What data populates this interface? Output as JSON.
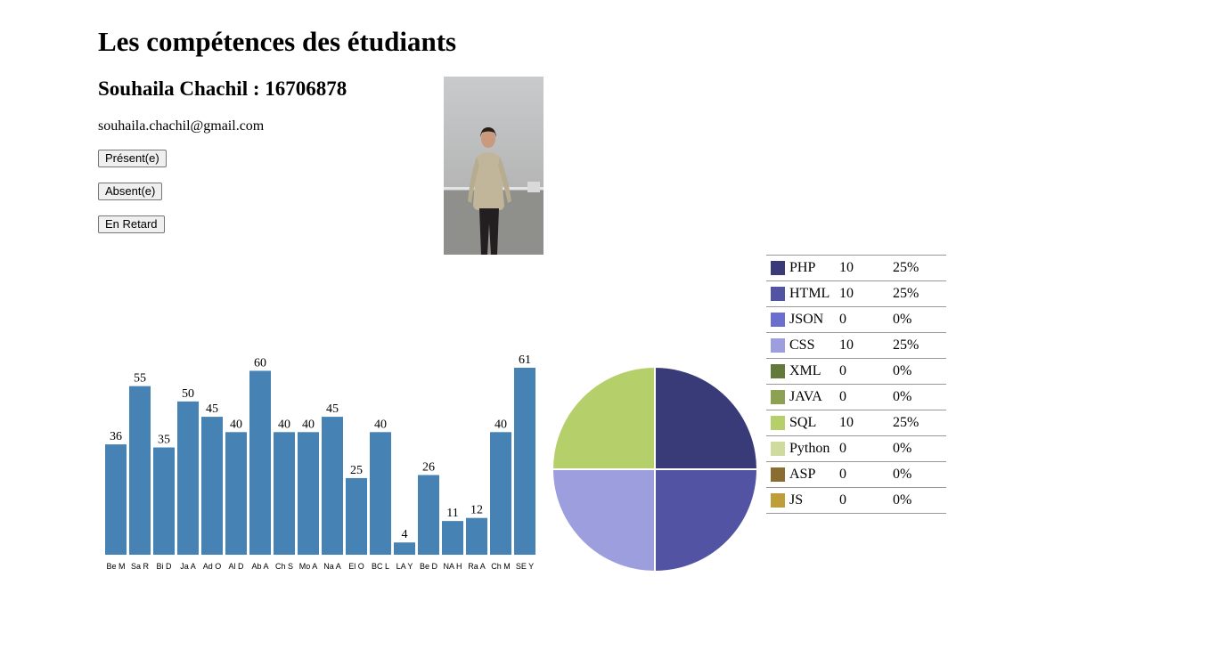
{
  "title": "Les compétences des étudiants",
  "student": {
    "name": "Souhaila Chachil : 16706878",
    "email": "souhaila.chachil@gmail.com"
  },
  "buttons": {
    "present": "Présent(e)",
    "absent": "Absent(e)",
    "late": "En Retard"
  },
  "colors": {
    "bar": "#4682b4"
  },
  "chart_data": [
    {
      "type": "bar",
      "categories": [
        "Be M",
        "Sa R",
        "Bi D",
        "Ja A",
        "Ad O",
        "Al D",
        "Ab A",
        "Ch S",
        "Mo A",
        "Na A",
        "El O",
        "BC L",
        "LA Y",
        "Be D",
        "NA H",
        "Ra A",
        "Ch M",
        "SE Y"
      ],
      "values": [
        36,
        55,
        35,
        50,
        45,
        40,
        60,
        40,
        40,
        45,
        25,
        40,
        4,
        26,
        11,
        12,
        40,
        61
      ],
      "ylim": [
        0,
        61
      ],
      "grid": false
    },
    {
      "type": "pie",
      "labels": [
        "PHP",
        "HTML",
        "JSON",
        "CSS",
        "XML",
        "JAVA",
        "SQL",
        "Python",
        "ASP",
        "JS"
      ],
      "values": [
        10,
        10,
        0,
        10,
        0,
        0,
        10,
        0,
        0,
        0
      ],
      "percents": [
        "25%",
        "25%",
        "0%",
        "25%",
        "0%",
        "0%",
        "25%",
        "0%",
        "0%",
        "0%"
      ],
      "colors": [
        "#393b79",
        "#5254a3",
        "#6b6ecf",
        "#9c9ede",
        "#637939",
        "#8ca252",
        "#b5cf6b",
        "#cedb9c",
        "#8c6d31",
        "#bd9e39"
      ],
      "legend": "right"
    }
  ]
}
